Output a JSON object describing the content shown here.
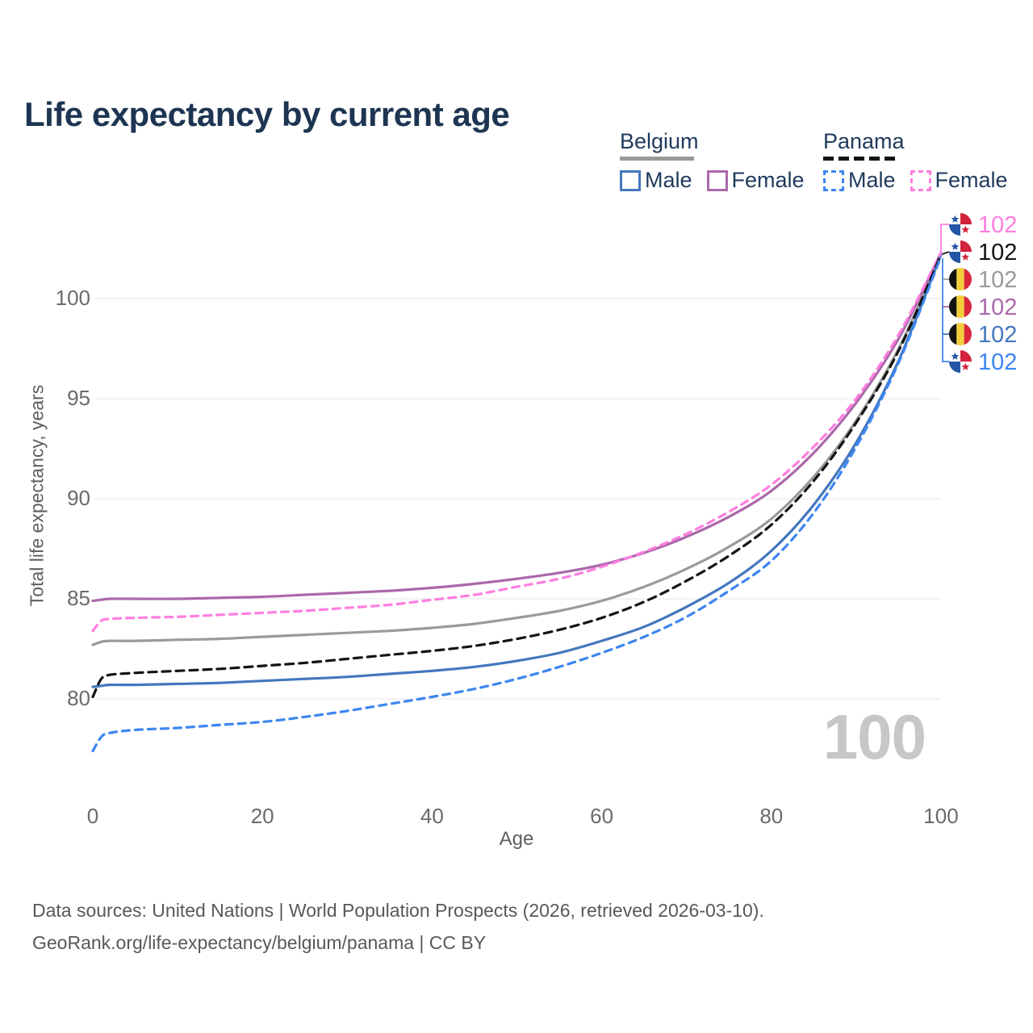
{
  "title": "Life expectancy by current age",
  "legend": {
    "belgium": {
      "label": "Belgium",
      "male": "Male",
      "female": "Female"
    },
    "panama": {
      "label": "Panama",
      "male": "Male",
      "female": "Female"
    }
  },
  "footer": {
    "line1": "Data sources: United Nations | World Population Prospects (2026, retrieved 2026-03-10).",
    "line2": "GeoRank.org/life-expectancy/belgium/panama | CC BY"
  },
  "colors": {
    "belgium_male": "#4377bd",
    "belgium_female": "#ab68ab",
    "belgium_all": "#9a9a9a",
    "panama_male": "#3d86f2",
    "panama_female": "#ff7ee0",
    "panama_all": "#141414",
    "title_text": "#1d3552",
    "legend_text": "#1f3a5c",
    "tick_text": "#6b6b6b",
    "axis_title_text": "#5f5f5f",
    "footer_text": "#58585a",
    "gridline": "#ededed",
    "watermark": "#c7c7c7",
    "flag_panama_red": "#d2223c",
    "flag_panama_blue": "#2456a5",
    "flag_belgium_black": "#121212",
    "flag_belgium_yellow": "#f2cf3a",
    "flag_belgium_red": "#d8273a"
  },
  "chart_data": {
    "type": "line",
    "title": "Life expectancy by current age",
    "xlabel": "Age",
    "ylabel": "Total life expectancy, years",
    "x_ticks": [
      0,
      20,
      40,
      60,
      80,
      100
    ],
    "y_ticks": [
      80,
      85,
      90,
      95,
      100
    ],
    "xlim": [
      0,
      100
    ],
    "ylim": [
      77,
      103
    ],
    "grid": "horizontal",
    "legend_position": "top-right",
    "age_watermark": "100",
    "x": [
      0,
      1,
      2,
      5,
      10,
      15,
      20,
      25,
      30,
      35,
      40,
      45,
      50,
      55,
      60,
      65,
      70,
      75,
      80,
      85,
      90,
      95,
      100
    ],
    "series": [
      {
        "id": "belgium_all",
        "name": "Belgium",
        "country": "belgium",
        "sex": "all",
        "line": "solid",
        "color_key": "belgium_all",
        "end_label": "102",
        "values": [
          82.7,
          82.85,
          82.9,
          82.9,
          82.95,
          83.0,
          83.1,
          83.2,
          83.3,
          83.4,
          83.55,
          83.75,
          84.05,
          84.4,
          84.9,
          85.6,
          86.5,
          87.6,
          89.0,
          91.1,
          93.9,
          97.5,
          102.2
        ]
      },
      {
        "id": "belgium_female",
        "name": "Belgium Female",
        "country": "belgium",
        "sex": "female",
        "line": "solid",
        "color_key": "belgium_female",
        "end_label": "102",
        "values": [
          84.9,
          84.95,
          85.0,
          85.0,
          85.0,
          85.05,
          85.1,
          85.2,
          85.3,
          85.4,
          85.55,
          85.75,
          86.0,
          86.3,
          86.7,
          87.3,
          88.1,
          89.1,
          90.4,
          92.3,
          94.8,
          98.0,
          102.3
        ]
      },
      {
        "id": "belgium_male",
        "name": "Belgium Male",
        "country": "belgium",
        "sex": "male",
        "line": "solid",
        "color_key": "belgium_male",
        "end_label": "102",
        "values": [
          80.6,
          80.65,
          80.7,
          80.7,
          80.75,
          80.8,
          80.9,
          81.0,
          81.1,
          81.25,
          81.4,
          81.6,
          81.9,
          82.3,
          82.9,
          83.6,
          84.6,
          85.8,
          87.4,
          89.7,
          92.8,
          96.9,
          102.2
        ]
      },
      {
        "id": "panama_female",
        "name": "Panama Female",
        "country": "panama",
        "sex": "female",
        "line": "dashed",
        "color_key": "panama_female",
        "end_label": "102",
        "values": [
          83.4,
          83.9,
          84.0,
          84.05,
          84.1,
          84.2,
          84.3,
          84.4,
          84.55,
          84.7,
          84.95,
          85.2,
          85.6,
          86.0,
          86.6,
          87.35,
          88.25,
          89.35,
          90.7,
          92.6,
          95.0,
          98.2,
          102.3
        ]
      },
      {
        "id": "panama_all",
        "name": "Panama",
        "country": "panama",
        "sex": "all",
        "line": "dashed",
        "color_key": "panama_all",
        "end_label": "102",
        "values": [
          80.1,
          81.0,
          81.2,
          81.3,
          81.4,
          81.5,
          81.65,
          81.8,
          82.0,
          82.2,
          82.4,
          82.65,
          83.0,
          83.45,
          84.05,
          84.85,
          85.9,
          87.15,
          88.7,
          90.9,
          93.8,
          97.4,
          102.2
        ]
      },
      {
        "id": "panama_male",
        "name": "Panama Male",
        "country": "panama",
        "sex": "male",
        "line": "dashed",
        "color_key": "panama_male",
        "end_label": "102",
        "values": [
          77.4,
          78.1,
          78.3,
          78.45,
          78.55,
          78.7,
          78.85,
          79.1,
          79.4,
          79.75,
          80.1,
          80.5,
          81.0,
          81.6,
          82.3,
          83.1,
          84.1,
          85.4,
          86.9,
          89.3,
          92.6,
          96.8,
          102.1
        ]
      }
    ],
    "end_label_order": [
      "panama_female",
      "panama_all",
      "belgium_all",
      "belgium_female",
      "belgium_male",
      "panama_male"
    ]
  }
}
